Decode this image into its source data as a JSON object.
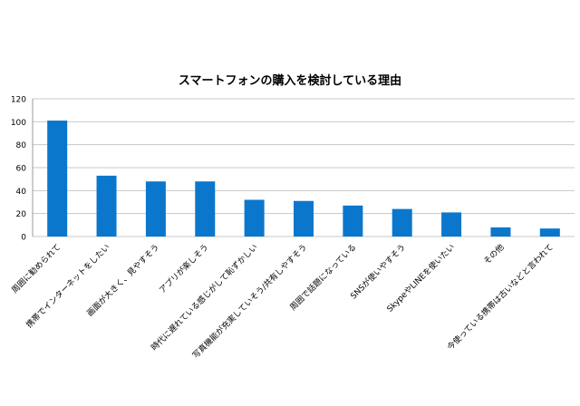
{
  "chart_data": {
    "type": "bar",
    "title": "スマートフォンの購入を検討している理由",
    "categories": [
      "周囲に勧められて",
      "携帯でインターネットをしたい",
      "画面が大きく、見やすそう",
      "アプリが楽しそう",
      "時代に遅れている感じがして恥ずかしい",
      "写真機能が充実していそう/共有しやすそう",
      "周囲で話題になっている",
      "SNSが使いやすそう",
      "SkypeやLINEを使いたい",
      "その他",
      "今使っている携帯は古いなどと言われて"
    ],
    "values": [
      101,
      53,
      48,
      48,
      32,
      31,
      27,
      24,
      21,
      8,
      7
    ],
    "ylim": [
      0,
      120
    ],
    "yticks": [
      0,
      20,
      40,
      60,
      80,
      100,
      120
    ],
    "grid": true,
    "bar_color": "#0b77cc",
    "grid_color": "#c8c8c8"
  }
}
